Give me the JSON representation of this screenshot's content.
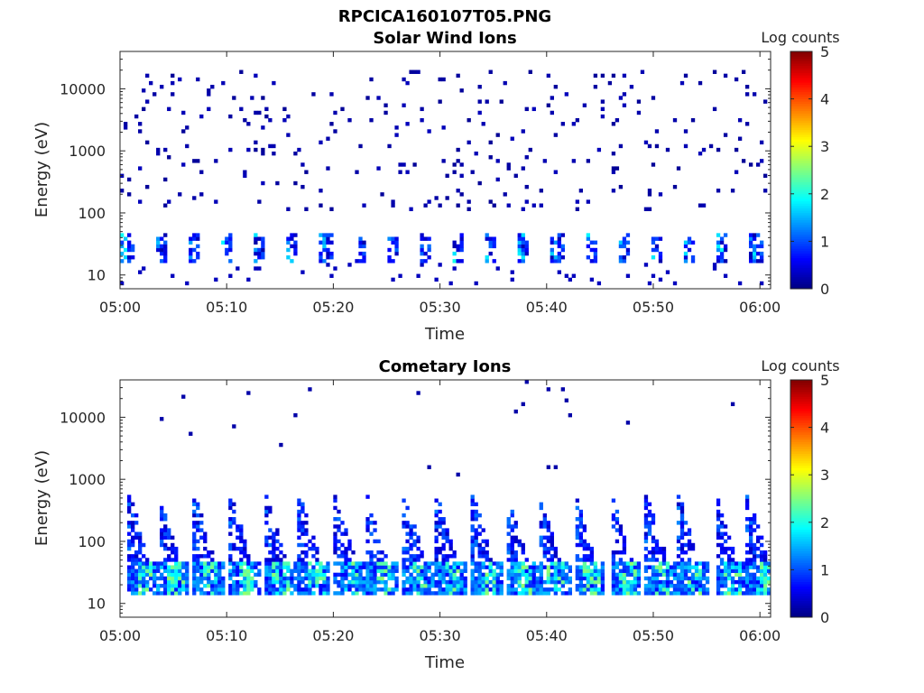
{
  "figure_title": "RPCICA160107T05.PNG",
  "colormap": [
    "#00008f",
    "#0000ff",
    "#0080ff",
    "#00ffff",
    "#80ff80",
    "#ffff00",
    "#ff8000",
    "#ff0000",
    "#800000"
  ],
  "chart_data": [
    {
      "type": "heatmap",
      "title": "Solar Wind Ions",
      "xlabel": "Time",
      "ylabel": "Energy (eV)",
      "xlim": [
        "05:00",
        "06:01"
      ],
      "ylim": [
        6,
        40000
      ],
      "yscale": "log",
      "xticks": [
        "05:00",
        "05:10",
        "05:20",
        "05:30",
        "05:40",
        "05:50",
        "06:00"
      ],
      "yticks": [
        "10",
        "100",
        "1000",
        "10000"
      ],
      "colorbar": {
        "label": "Log counts",
        "range": [
          0,
          5
        ],
        "ticks": [
          "0",
          "1",
          "2",
          "3",
          "4",
          "5"
        ]
      },
      "features": {
        "background_noise": {
          "energy_range_eV": [
            100,
            20000
          ],
          "log_counts": 0.1
        },
        "low_energy_band": {
          "energy_range_eV": [
            15,
            45
          ],
          "log_counts_peak": 1.8,
          "period_minutes": 3.1
        }
      }
    },
    {
      "type": "heatmap",
      "title": "Cometary Ions",
      "xlabel": "Time",
      "ylabel": "Energy (eV)",
      "xlim": [
        "05:00",
        "06:01"
      ],
      "ylim": [
        6,
        40000
      ],
      "yscale": "log",
      "xticks": [
        "05:00",
        "05:10",
        "05:20",
        "05:30",
        "05:40",
        "05:50",
        "06:00"
      ],
      "yticks": [
        "10",
        "100",
        "1000",
        "10000"
      ],
      "colorbar": {
        "label": "Log counts",
        "range": [
          0,
          5
        ],
        "ticks": [
          "0",
          "1",
          "2",
          "3",
          "4",
          "5"
        ]
      },
      "features": {
        "spikes_minutes": [
          0.8,
          3.6,
          6.9,
          10.3,
          13.6,
          16.8,
          20.1,
          23.2,
          26.6,
          29.6,
          33.0,
          36.2,
          39.3,
          42.6,
          46.0,
          49.3,
          52.3,
          55.8,
          58.8
        ],
        "spike_peak_energy_eV": 500,
        "band_energy_range_eV": [
          12,
          45
        ],
        "log_counts_peak": 2.6
      }
    }
  ]
}
